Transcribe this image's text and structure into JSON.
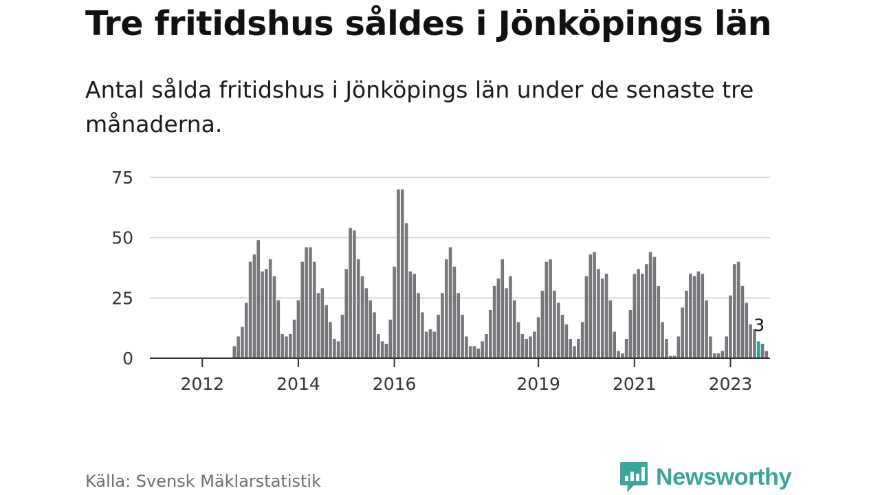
{
  "header": {
    "title": "Tre fritidshus såldes i Jönköpings län",
    "subtitle": "Antal sålda fritidshus i Jönköpings län under de senaste tre månaderna."
  },
  "footer": {
    "source": "Källa: Svensk Mäklarstatistik",
    "brand": "Newsworthy"
  },
  "colors": {
    "bar": "#77777b",
    "highlight": "#26a69a",
    "grid": "#d9d9d9",
    "axis": "#333333",
    "brand": "#3aa59a"
  },
  "chart_data": {
    "type": "bar",
    "title": "Tre fritidshus såldes i Jönköpings län",
    "subtitle": "Antal sålda fritidshus i Jönköpings län under de senaste tre månaderna.",
    "ylim": [
      0,
      75
    ],
    "yticks": [
      0,
      25,
      50,
      75
    ],
    "grid": true,
    "xticks": [
      {
        "label": "2012",
        "year": 2012
      },
      {
        "label": "2014",
        "year": 2014
      },
      {
        "label": "2016",
        "year": 2016
      },
      {
        "label": "2019",
        "year": 2019
      },
      {
        "label": "2021",
        "year": 2021
      },
      {
        "label": "2023",
        "year": 2023
      }
    ],
    "start": {
      "year": 2011,
      "month": 1
    },
    "values": [
      0,
      0,
      0,
      0,
      0,
      0,
      0,
      0,
      0,
      0,
      0,
      0,
      0,
      0,
      0,
      0,
      0,
      0,
      0,
      0,
      5,
      9,
      13,
      23,
      40,
      43,
      49,
      36,
      37,
      41,
      34,
      24,
      10,
      9,
      10,
      16,
      24,
      40,
      46,
      46,
      40,
      27,
      29,
      22,
      15,
      8,
      7,
      18,
      37,
      54,
      53,
      41,
      34,
      29,
      24,
      19,
      10,
      7,
      6,
      16,
      38,
      70,
      70,
      56,
      36,
      35,
      27,
      19,
      11,
      12,
      11,
      18,
      27,
      41,
      46,
      38,
      27,
      18,
      9,
      5,
      5,
      4,
      7,
      10,
      20,
      30,
      33,
      41,
      29,
      34,
      24,
      15,
      10,
      8,
      9,
      11,
      17,
      28,
      40,
      41,
      28,
      23,
      18,
      14,
      8,
      5,
      8,
      15,
      34,
      43,
      44,
      37,
      33,
      35,
      24,
      11,
      3,
      2,
      8,
      20,
      35,
      37,
      35,
      39,
      44,
      42,
      30,
      15,
      8,
      1,
      1,
      9,
      21,
      28,
      35,
      34,
      36,
      35,
      24,
      9,
      2,
      2,
      3,
      9,
      26,
      39,
      40,
      30,
      23,
      14,
      12,
      7,
      6,
      3
    ],
    "highlight_index": 151,
    "annotation": "3"
  }
}
